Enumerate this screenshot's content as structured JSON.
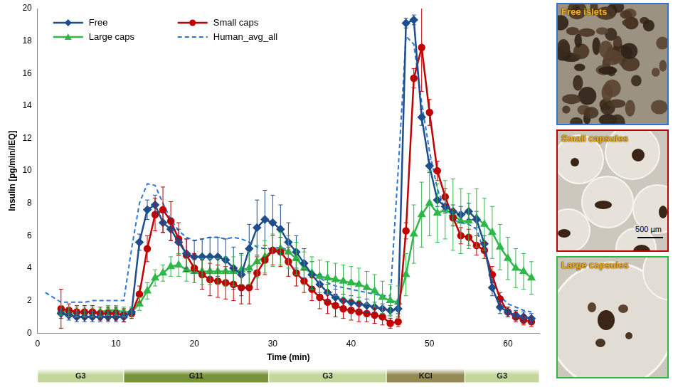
{
  "chart_data": {
    "type": "line",
    "x_label": "Time (min)",
    "y_label": "Insulin [pg/min/IEQ]",
    "xlim": [
      0,
      64
    ],
    "xticks": [
      0,
      10,
      20,
      30,
      40,
      50,
      60
    ],
    "ylim": [
      0,
      20
    ],
    "yticks": [
      0,
      2,
      4,
      6,
      8,
      10,
      12,
      14,
      16,
      18,
      20
    ],
    "grid": false,
    "legend": "upper left",
    "series": [
      {
        "name": "Free",
        "color": "#1f4e8c",
        "marker": "diamond",
        "line_style": "solid",
        "x": [
          3,
          4,
          5,
          6,
          7,
          8,
          9,
          10,
          11,
          12,
          13,
          14,
          15,
          16,
          17,
          18,
          19,
          20,
          21,
          22,
          23,
          24,
          25,
          26,
          27,
          28,
          29,
          30,
          31,
          32,
          33,
          34,
          35,
          36,
          37,
          38,
          39,
          40,
          41,
          42,
          43,
          44,
          45,
          46,
          47,
          48,
          49,
          50,
          51,
          52,
          53,
          54,
          55,
          56,
          57,
          58,
          59,
          60,
          61,
          62,
          63
        ],
        "values": [
          1.2,
          1.1,
          1.0,
          1.0,
          1.0,
          1.0,
          1.0,
          1.0,
          1.0,
          1.3,
          5.6,
          7.6,
          7.9,
          6.8,
          6.4,
          5.6,
          4.9,
          4.7,
          4.7,
          4.7,
          4.7,
          4.5,
          4.0,
          3.6,
          5.2,
          6.5,
          7.0,
          6.8,
          6.4,
          5.6,
          5.0,
          4.3,
          3.6,
          3.0,
          2.5,
          2.2,
          2.0,
          1.9,
          1.8,
          1.7,
          1.6,
          1.5,
          1.4,
          1.5,
          19.1,
          19.3,
          13.3,
          10.3,
          8.2,
          7.8,
          7.5,
          7.3,
          7.5,
          7.0,
          5.5,
          2.8,
          1.6,
          1.3,
          1.1,
          1.0,
          0.9
        ],
        "errors": [
          0.3,
          0.3,
          0.3,
          0.3,
          0.3,
          0.3,
          0.3,
          0.3,
          0.3,
          0.3,
          0.5,
          0.6,
          0.6,
          0.6,
          0.7,
          0.8,
          0.9,
          1.0,
          1.1,
          1.2,
          1.2,
          1.3,
          1.3,
          1.3,
          1.5,
          1.7,
          1.8,
          1.7,
          1.5,
          1.2,
          1.0,
          0.9,
          0.8,
          0.6,
          0.5,
          0.5,
          0.4,
          0.4,
          0.4,
          0.4,
          0.3,
          0.3,
          0.3,
          0.3,
          0.3,
          0.3,
          0.5,
          0.4,
          0.4,
          0.4,
          0.4,
          0.5,
          0.5,
          0.5,
          0.5,
          0.5,
          0.4,
          0.3,
          0.3,
          0.3,
          0.3
        ]
      },
      {
        "name": "Small caps",
        "color": "#c00000",
        "marker": "circle",
        "line_style": "solid",
        "x": [
          3,
          4,
          5,
          6,
          7,
          8,
          9,
          10,
          11,
          12,
          13,
          14,
          15,
          16,
          17,
          18,
          19,
          20,
          21,
          22,
          23,
          24,
          25,
          26,
          27,
          28,
          29,
          30,
          31,
          32,
          33,
          34,
          35,
          36,
          37,
          38,
          39,
          40,
          41,
          42,
          43,
          44,
          45,
          46,
          47,
          48,
          49,
          50,
          51,
          52,
          53,
          54,
          55,
          56,
          57,
          58,
          59,
          60,
          61,
          62,
          63
        ],
        "values": [
          1.5,
          1.4,
          1.3,
          1.3,
          1.3,
          1.2,
          1.2,
          1.2,
          1.1,
          1.2,
          2.4,
          5.2,
          7.3,
          7.6,
          6.9,
          5.8,
          4.8,
          4.0,
          3.6,
          3.3,
          3.2,
          3.1,
          3.0,
          2.8,
          2.8,
          3.7,
          4.5,
          5.1,
          5.0,
          4.4,
          3.7,
          3.2,
          2.7,
          2.2,
          1.9,
          1.7,
          1.5,
          1.4,
          1.3,
          1.2,
          1.1,
          1.0,
          0.6,
          0.7,
          6.3,
          15.7,
          17.6,
          13.6,
          10.0,
          8.4,
          7.1,
          6.0,
          5.9,
          5.4,
          5.1,
          3.6,
          2.1,
          1.3,
          1.0,
          0.8,
          0.7
        ],
        "errors": [
          1.2,
          0.4,
          0.4,
          0.4,
          0.4,
          0.4,
          0.4,
          0.4,
          0.4,
          0.3,
          0.5,
          0.8,
          1.0,
          1.4,
          1.2,
          1.0,
          1.0,
          0.9,
          0.9,
          1.0,
          1.0,
          1.0,
          1.0,
          1.0,
          1.0,
          1.0,
          0.9,
          0.9,
          0.9,
          0.9,
          0.8,
          0.7,
          0.7,
          0.7,
          0.7,
          0.7,
          0.6,
          0.6,
          0.6,
          0.5,
          0.5,
          0.5,
          0.3,
          0.3,
          0.5,
          0.6,
          2.7,
          0.8,
          0.6,
          0.5,
          0.5,
          0.5,
          0.5,
          0.6,
          0.5,
          0.5,
          0.4,
          0.3,
          0.3,
          0.3,
          0.3
        ]
      },
      {
        "name": "Large caps",
        "color": "#2fb84a",
        "marker": "triangle",
        "line_style": "solid",
        "x": [
          3,
          4,
          5,
          6,
          7,
          8,
          9,
          10,
          11,
          12,
          13,
          14,
          15,
          16,
          17,
          18,
          19,
          20,
          21,
          22,
          23,
          24,
          25,
          26,
          27,
          28,
          29,
          30,
          31,
          32,
          33,
          34,
          35,
          36,
          37,
          38,
          39,
          40,
          41,
          42,
          43,
          44,
          45,
          46,
          47,
          48,
          49,
          50,
          51,
          52,
          53,
          54,
          55,
          56,
          57,
          58,
          59,
          60,
          61,
          62,
          63
        ],
        "values": [
          1.4,
          1.3,
          1.3,
          1.3,
          1.3,
          1.3,
          1.4,
          1.4,
          1.3,
          1.3,
          1.8,
          2.6,
          3.4,
          3.7,
          4.1,
          4.2,
          3.9,
          3.8,
          3.8,
          3.8,
          3.8,
          3.8,
          3.8,
          3.9,
          4.0,
          4.4,
          4.7,
          5.1,
          5.2,
          5.0,
          4.6,
          4.0,
          3.7,
          3.5,
          3.4,
          3.3,
          3.2,
          3.1,
          3.0,
          2.8,
          2.6,
          2.2,
          2.0,
          1.9,
          3.6,
          6.1,
          7.3,
          8.0,
          7.4,
          7.6,
          7.3,
          6.9,
          6.9,
          7.1,
          6.7,
          6.2,
          5.3,
          4.6,
          4.0,
          3.8,
          3.4
        ],
        "errors": [
          0.3,
          0.3,
          0.3,
          0.3,
          0.3,
          0.3,
          0.3,
          0.3,
          0.3,
          0.3,
          0.4,
          0.5,
          0.5,
          0.5,
          0.6,
          0.7,
          0.7,
          0.7,
          0.8,
          0.8,
          0.8,
          0.9,
          0.9,
          0.9,
          1.0,
          1.0,
          1.0,
          1.0,
          1.0,
          1.0,
          1.0,
          1.0,
          1.0,
          1.0,
          1.0,
          1.0,
          1.0,
          1.0,
          1.0,
          1.0,
          1.0,
          1.0,
          1.0,
          1.0,
          1.3,
          1.8,
          2.0,
          2.0,
          1.8,
          1.8,
          2.2,
          2.0,
          1.7,
          1.8,
          1.6,
          1.6,
          1.4,
          1.3,
          1.2,
          1.1,
          1.0
        ]
      },
      {
        "name": "Human_avg_all",
        "color": "#2e75d6",
        "marker": "none",
        "line_style": "dashed",
        "x": [
          1,
          2,
          3,
          4,
          5,
          6,
          7,
          8,
          9,
          10,
          11,
          12,
          13,
          14,
          15,
          16,
          17,
          18,
          19,
          20,
          21,
          22,
          23,
          24,
          25,
          26,
          27,
          28,
          29,
          30,
          31,
          32,
          33,
          34,
          35,
          36,
          37,
          38,
          39,
          40,
          41,
          42,
          43,
          44,
          45,
          46,
          47,
          48,
          49,
          50,
          51,
          52,
          53,
          54,
          55,
          56,
          57,
          58,
          59,
          60,
          61,
          62,
          63
        ],
        "values": [
          2.5,
          2.2,
          1.9,
          1.9,
          1.9,
          1.9,
          2.0,
          2.0,
          2.0,
          2.0,
          2.0,
          5.2,
          8.0,
          9.2,
          9.1,
          8.0,
          7.0,
          6.3,
          5.9,
          5.7,
          5.8,
          5.9,
          5.9,
          5.8,
          5.9,
          5.8,
          5.6,
          5.3,
          5.2,
          5.2,
          5.3,
          5.1,
          4.6,
          4.1,
          3.7,
          3.4,
          3.1,
          2.9,
          2.8,
          2.7,
          2.6,
          2.5,
          2.4,
          2.3,
          2.3,
          10.0,
          18.3,
          17.8,
          14.2,
          11.2,
          8.9,
          7.6,
          7.0,
          6.8,
          6.7,
          6.4,
          5.0,
          3.3,
          2.3,
          1.8,
          1.6,
          1.4,
          1.3
        ]
      }
    ],
    "phases": [
      {
        "label": "G3",
        "start": 0,
        "end": 11,
        "color": "#c4d79b"
      },
      {
        "label": "G11",
        "start": 11,
        "end": 29.5,
        "color": "#77933c"
      },
      {
        "label": "G3",
        "start": 29.5,
        "end": 44.5,
        "color": "#c4d79b"
      },
      {
        "label": "KCl",
        "start": 44.5,
        "end": 54.5,
        "color": "#948a54"
      },
      {
        "label": "G3",
        "start": 54.5,
        "end": 64,
        "color": "#c4d79b"
      }
    ],
    "panels": [
      {
        "label": "Free islets",
        "color": "#2e75d6"
      },
      {
        "label": "Small capsules",
        "color": "#c00000",
        "scale_bar": "500 µm"
      },
      {
        "label": "Large capsules",
        "color": "#2fb84a"
      }
    ]
  }
}
